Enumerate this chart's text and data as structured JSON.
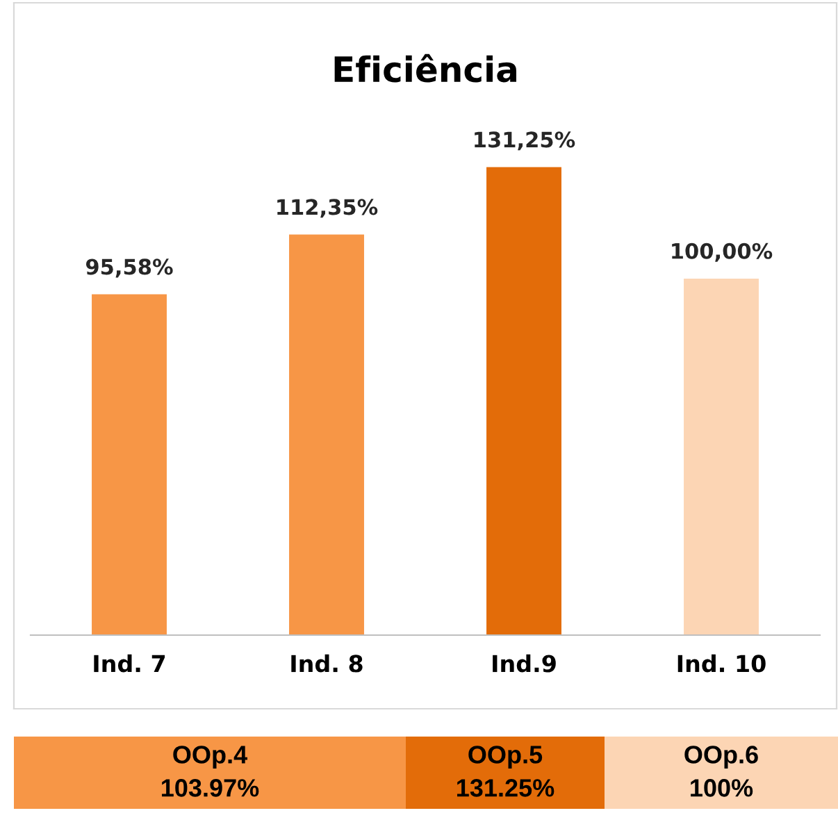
{
  "chart_data": [
    {
      "type": "bar",
      "title": "Eficiência",
      "categories": [
        "Ind. 7",
        "Ind. 8",
        "Ind.9",
        "Ind. 10"
      ],
      "values": [
        95.58,
        112.35,
        131.25,
        100.0
      ],
      "colors": [
        "#f79646",
        "#f79646",
        "#e36c09",
        "#fcd5b4"
      ],
      "value_labels": [
        "95,58%",
        "112,35%",
        "131,25%",
        "100,00%"
      ]
    },
    {
      "type": "other",
      "categories": [
        "OOp.4",
        "OOp.5",
        "OOp.6"
      ],
      "value_labels": [
        "103.97%",
        "131.25%",
        "100%"
      ],
      "colors": [
        "#f79646",
        "#e36c09",
        "#fcd5b4"
      ]
    }
  ]
}
